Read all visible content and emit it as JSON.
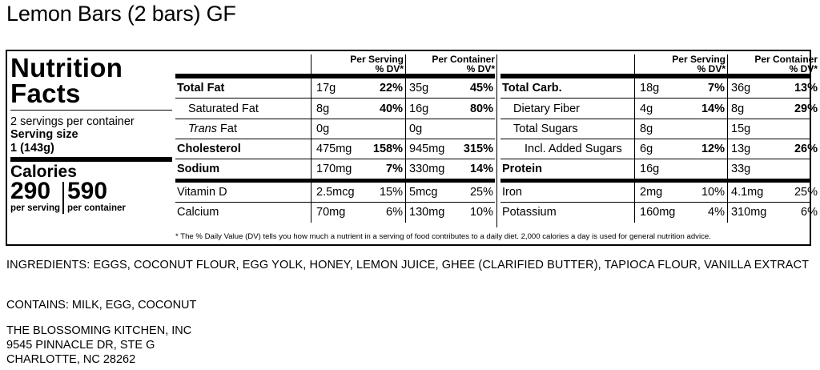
{
  "product_title": "Lemon Bars (2 bars) GF",
  "label": {
    "heading": "Nutrition Facts",
    "servings_per_container": "2 servings per container",
    "serving_size_label": "Serving size",
    "serving_size_value": "1 (143g)",
    "calories_label": "Calories",
    "calories_per_serving": "290",
    "calories_per_serving_label": "per serving",
    "calories_per_container": "590",
    "calories_per_container_label": "per container",
    "col_per_serving": "Per Serving",
    "col_per_container": "Per Container",
    "col_dv": "% DV*",
    "left_rows": [
      {
        "name": "Total Fat",
        "bold": true,
        "indent": 0,
        "s_amt": "17g",
        "s_dv": "22%",
        "c_amt": "35g",
        "c_dv": "45%"
      },
      {
        "name": "Saturated Fat",
        "bold": false,
        "indent": 1,
        "s_amt": "8g",
        "s_dv": "40%",
        "c_amt": "16g",
        "c_dv": "80%"
      },
      {
        "name_italic": "Trans",
        "name": " Fat",
        "bold": false,
        "indent": 1,
        "s_amt": "0g",
        "s_dv": "",
        "c_amt": "0g",
        "c_dv": ""
      },
      {
        "name": "Cholesterol",
        "bold": true,
        "indent": 0,
        "s_amt": "475mg",
        "s_dv": "158%",
        "c_amt": "945mg",
        "c_dv": "315%"
      },
      {
        "name": "Sodium",
        "bold": true,
        "indent": 0,
        "s_amt": "170mg",
        "s_dv": "7%",
        "c_amt": "330mg",
        "c_dv": "14%"
      },
      {
        "name": "Vitamin D",
        "bold": false,
        "indent": 0,
        "s_amt": "2.5mcg",
        "s_dv": "15%",
        "c_amt": "5mcg",
        "c_dv": "25%"
      },
      {
        "name": "Calcium",
        "bold": false,
        "indent": 0,
        "s_amt": "70mg",
        "s_dv": "6%",
        "c_amt": "130mg",
        "c_dv": "10%"
      }
    ],
    "right_rows": [
      {
        "name": "Total Carb.",
        "bold": true,
        "indent": 0,
        "s_amt": "18g",
        "s_dv": "7%",
        "c_amt": "36g",
        "c_dv": "13%"
      },
      {
        "name": "Dietary Fiber",
        "bold": false,
        "indent": 1,
        "s_amt": "4g",
        "s_dv": "14%",
        "c_amt": "8g",
        "c_dv": "29%"
      },
      {
        "name": "Total Sugars",
        "bold": false,
        "indent": 1,
        "s_amt": "8g",
        "s_dv": "",
        "c_amt": "15g",
        "c_dv": ""
      },
      {
        "name": "Incl. Added Sugars",
        "bold": false,
        "indent": 2,
        "s_amt": "6g",
        "s_dv": "12%",
        "c_amt": "13g",
        "c_dv": "26%"
      },
      {
        "name": "Protein",
        "bold": true,
        "indent": 0,
        "s_amt": "16g",
        "s_dv": "",
        "c_amt": "33g",
        "c_dv": ""
      },
      {
        "name": "Iron",
        "bold": false,
        "indent": 0,
        "s_amt": "2mg",
        "s_dv": "10%",
        "c_amt": "4.1mg",
        "c_dv": "25%"
      },
      {
        "name": "Potassium",
        "bold": false,
        "indent": 0,
        "s_amt": "160mg",
        "s_dv": "4%",
        "c_amt": "310mg",
        "c_dv": "6%"
      }
    ],
    "footnote": "* The % Daily Value (DV) tells you how much a nutrient in a serving of food contributes to a daily diet. 2,000 calories a day is used for general nutrition advice."
  },
  "ingredients": "INGREDIENTS: EGGS, COCONUT FLOUR, EGG YOLK, HONEY, LEMON JUICE, GHEE (CLARIFIED BUTTER), TAPIOCA FLOUR, VANILLA EXTRACT",
  "contains": "CONTAINS: MILK, EGG, COCONUT",
  "address": {
    "line1": "THE BLOSSOMING KITCHEN, INC",
    "line2": "9545 PINNACLE DR, STE G",
    "line3": "CHARLOTTE, NC 28262"
  }
}
